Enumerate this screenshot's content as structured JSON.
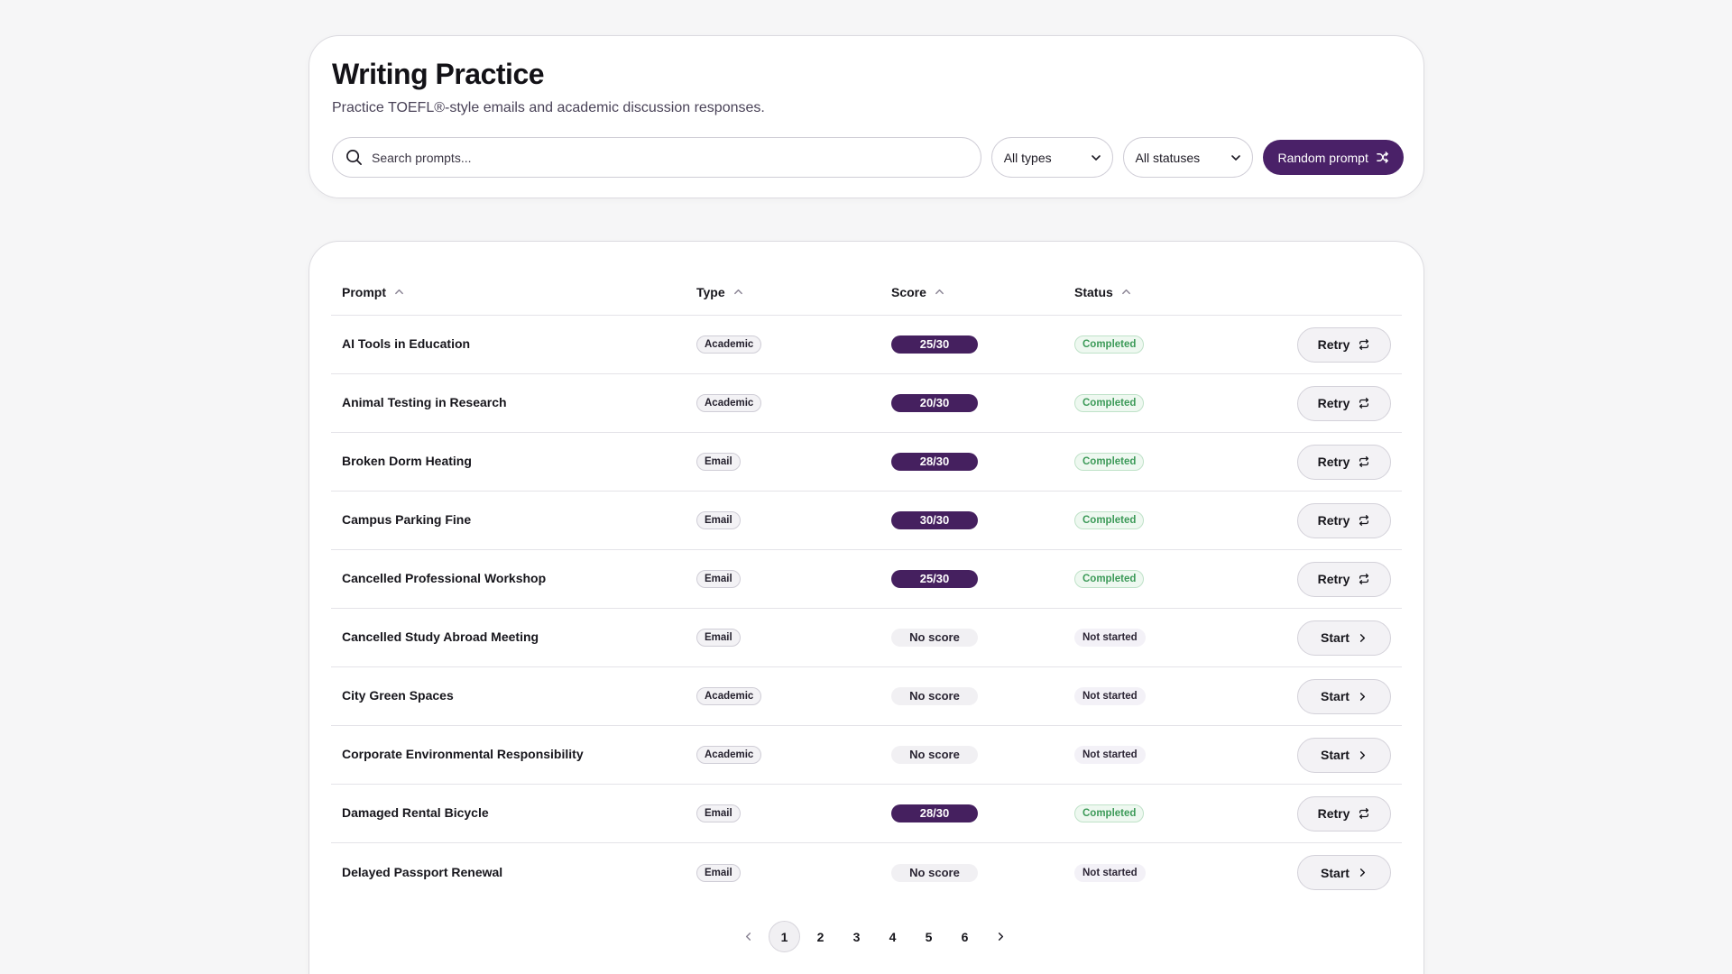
{
  "header": {
    "title": "Writing Practice",
    "subtitle": "Practice TOEFL®-style emails and academic discussion responses."
  },
  "toolbar": {
    "search_placeholder": "Search prompts...",
    "type_filter": "All types",
    "status_filter": "All statuses",
    "random_label": "Random prompt"
  },
  "table": {
    "columns": [
      "Prompt",
      "Type",
      "Score",
      "Status"
    ],
    "rows": [
      {
        "prompt": "AI Tools in Education",
        "type": "Academic",
        "score": "25/30",
        "status": "Completed",
        "action": "Retry"
      },
      {
        "prompt": "Animal Testing in Research",
        "type": "Academic",
        "score": "20/30",
        "status": "Completed",
        "action": "Retry"
      },
      {
        "prompt": "Broken Dorm Heating",
        "type": "Email",
        "score": "28/30",
        "status": "Completed",
        "action": "Retry"
      },
      {
        "prompt": "Campus Parking Fine",
        "type": "Email",
        "score": "30/30",
        "status": "Completed",
        "action": "Retry"
      },
      {
        "prompt": "Cancelled Professional Workshop",
        "type": "Email",
        "score": "25/30",
        "status": "Completed",
        "action": "Retry"
      },
      {
        "prompt": "Cancelled Study Abroad Meeting",
        "type": "Email",
        "score": "No score",
        "status": "Not started",
        "action": "Start"
      },
      {
        "prompt": "City Green Spaces",
        "type": "Academic",
        "score": "No score",
        "status": "Not started",
        "action": "Start"
      },
      {
        "prompt": "Corporate Environmental Responsibility",
        "type": "Academic",
        "score": "No score",
        "status": "Not started",
        "action": "Start"
      },
      {
        "prompt": "Damaged Rental Bicycle",
        "type": "Email",
        "score": "28/30",
        "status": "Completed",
        "action": "Retry"
      },
      {
        "prompt": "Delayed Passport Renewal",
        "type": "Email",
        "score": "No score",
        "status": "Not started",
        "action": "Start"
      }
    ]
  },
  "pagination": {
    "pages": [
      "1",
      "2",
      "3",
      "4",
      "5",
      "6"
    ],
    "current": "1"
  },
  "colors": {
    "accent": "#4a2168",
    "completed": "#3c9a58"
  },
  "icons": {
    "search": "search-icon",
    "dropdown": "chevron-down-icon",
    "random": "shuffle-icon",
    "sort": "chevron-up-icon",
    "retry": "repeat-icon",
    "start": "chevron-right-icon",
    "prev": "chevron-left-icon",
    "next": "chevron-right-icon"
  }
}
